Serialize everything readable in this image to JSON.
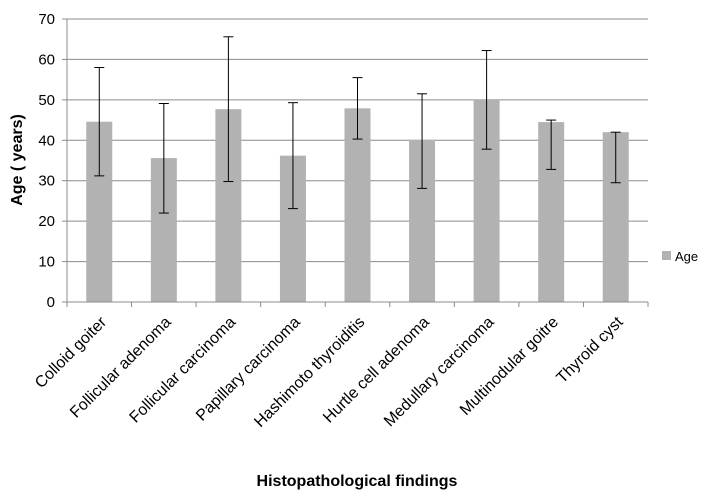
{
  "chart_data": {
    "type": "bar",
    "title": "",
    "xlabel": "Histopathological findings",
    "ylabel": "Age ( years)",
    "ylim": [
      0,
      70
    ],
    "yticks": [
      0,
      10,
      20,
      30,
      40,
      50,
      60,
      70
    ],
    "grid": true,
    "legend_position": "right",
    "categories": [
      "Colloid goiter",
      "Follicular adenoma",
      "Follicular carcinoma",
      "Papillary carcinoma",
      "Hashimoto thyroiditis",
      "Hurtle cell adenoma",
      "Medullary carcinoma",
      "Multinodular goitre",
      "Thyroid cyst"
    ],
    "series": [
      {
        "name": "Age",
        "color": "#b2b2b2",
        "values": [
          44.6,
          35.6,
          47.7,
          36.2,
          47.9,
          40.1,
          50.0,
          44.5,
          42.0
        ],
        "error_low": [
          31.2,
          22.0,
          29.8,
          23.1,
          40.3,
          28.1,
          37.8,
          32.8,
          29.5
        ],
        "error_high": [
          58.0,
          49.1,
          65.6,
          49.3,
          55.5,
          51.5,
          62.2,
          45.0,
          42.0
        ]
      }
    ]
  }
}
